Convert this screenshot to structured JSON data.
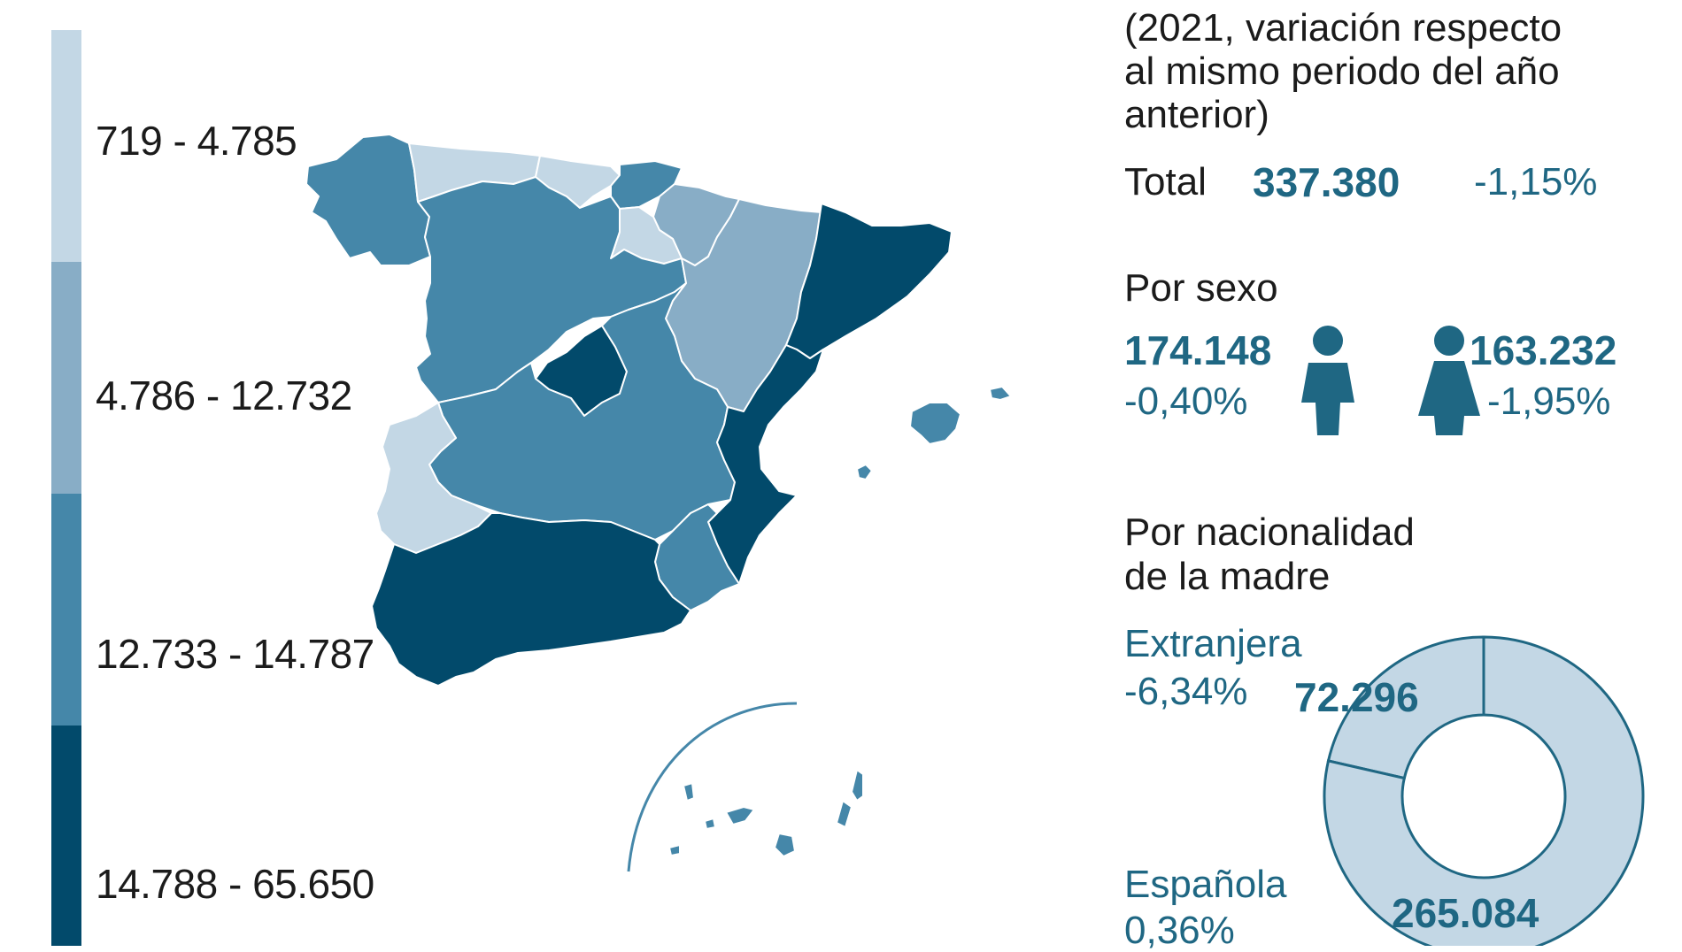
{
  "legend": {
    "items": [
      {
        "label": "719 - 4.785",
        "color": "#c3d7e5"
      },
      {
        "label": "4.786 - 12.732",
        "color": "#88adc6"
      },
      {
        "label": "12.733 - 14.787",
        "color": "#4587a9"
      },
      {
        "label": "14.788 - 65.650",
        "color": "#024a6b"
      }
    ]
  },
  "panel": {
    "subtitle_lines": [
      "(2021, variación respecto",
      "al mismo periodo del año",
      "anterior)"
    ],
    "total": {
      "label": "Total",
      "value": "337.380",
      "change": "-1,15%"
    },
    "by_sex": {
      "heading": "Por sexo",
      "male": {
        "value": "174.148",
        "change": "-0,40%",
        "icon": "man-icon"
      },
      "female": {
        "value": "163.232",
        "change": "-1,95%",
        "icon": "woman-icon"
      }
    },
    "by_nationality": {
      "heading_lines": [
        "Por nacionalidad",
        "de la madre"
      ],
      "foreign": {
        "label": "Extranjera",
        "change": "-6,34%",
        "value": "72.296"
      },
      "spanish": {
        "label": "Española",
        "change": "0,36%",
        "value": "265.084"
      }
    }
  },
  "colors": {
    "light": "#c3d7e5",
    "light_mid": "#88adc6",
    "mid": "#4587a9",
    "dark": "#024a6b",
    "accent_text": "#1f6783"
  },
  "chart_data": {
    "type": "pie",
    "categories": [
      "Extranjera",
      "Española"
    ],
    "values": [
      72296,
      265084
    ],
    "donut": true
  }
}
